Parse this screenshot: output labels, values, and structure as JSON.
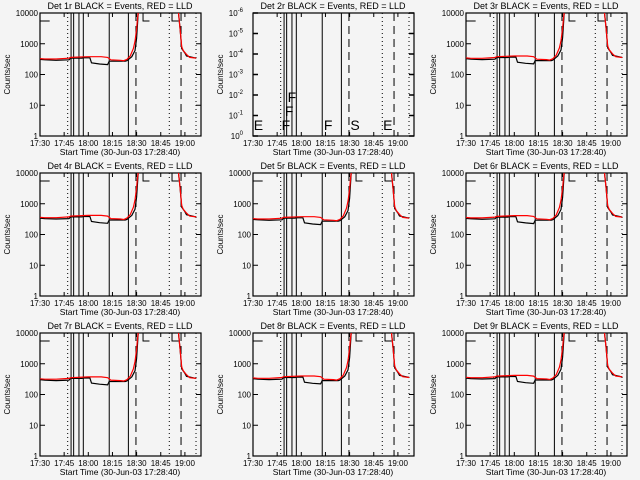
{
  "colors": {
    "events": "#000000",
    "lld": "#ff0000",
    "background": "#f4f4f4"
  },
  "chart_data": {
    "type": "line",
    "x_units": "minutes since 17:30",
    "xlim": [
      0,
      100
    ],
    "xticks": [
      {
        "v": 0,
        "label": "17:30"
      },
      {
        "v": 15,
        "label": "17:45"
      },
      {
        "v": 30,
        "label": "18:00"
      },
      {
        "v": 45,
        "label": "18:15"
      },
      {
        "v": 60,
        "label": "18:30"
      },
      {
        "v": 75,
        "label": "18:45"
      },
      {
        "v": 90,
        "label": "19:00"
      }
    ],
    "xlabel": "Start Time (30-Jun-03 17:28:40)",
    "ylabel": "Counts/sec",
    "ylim": [
      1,
      10000
    ],
    "yscale": "log",
    "yticks": [
      {
        "v": 1,
        "label": "1"
      },
      {
        "v": 10,
        "label": "10"
      },
      {
        "v": 100,
        "label": "100"
      },
      {
        "v": 1000,
        "label": "1000"
      },
      {
        "v": 10000,
        "label": "10000"
      }
    ],
    "markers": {
      "solid": [
        19.3,
        20.9,
        24.2,
        26.9,
        43,
        54.9
      ],
      "dashed": [
        59.6,
        87.6
      ],
      "dotted": [
        17.2,
        80.3,
        96.9
      ]
    },
    "panels": [
      {
        "title": "Det 1r BLACK = Events, RED = LLD",
        "scale": 1.0
      },
      {
        "title": "Det 2r BLACK = Events, RED = LLD",
        "empty": true,
        "yticks": [
          {
            "base": "10",
            "exp": "0"
          },
          {
            "base": "10",
            "exp": "-1"
          },
          {
            "base": "10",
            "exp": "-2"
          },
          {
            "base": "10",
            "exp": "-3"
          },
          {
            "base": "10",
            "exp": "-4"
          },
          {
            "base": "10",
            "exp": "-5"
          },
          {
            "base": "10",
            "exp": "-6"
          }
        ],
        "letters": [
          {
            "t": 0.5,
            "label": "E"
          },
          {
            "t": 17.8,
            "label": "F"
          },
          {
            "t": 19.8,
            "label": "F"
          },
          {
            "t": 21.5,
            "label": "F"
          },
          {
            "t": 44,
            "label": "F"
          },
          {
            "t": 60.5,
            "label": "S"
          },
          {
            "t": 80.8,
            "label": "E"
          }
        ]
      },
      {
        "title": "Det 3r BLACK = Events, RED = LLD",
        "scale": 1.05
      },
      {
        "title": "Det 4r BLACK = Events, RED = LLD",
        "scale": 1.1
      },
      {
        "title": "Det 5r BLACK = Events, RED = LLD",
        "scale": 1.0
      },
      {
        "title": "Det 6r BLACK = Events, RED = LLD",
        "scale": 1.08
      },
      {
        "title": "Det 7r BLACK = Events, RED = LLD",
        "scale": 0.98
      },
      {
        "title": "Det 8r BLACK = Events, RED = LLD",
        "scale": 1.05
      },
      {
        "title": "Det 9r BLACK = Events, RED = LLD",
        "scale": 1.1
      }
    ],
    "series": [
      {
        "name": "Events",
        "color": "#000000",
        "segments": [
          [
            [
              0,
              310
            ],
            [
              3,
              300
            ],
            [
              10,
              290
            ],
            [
              18,
              300
            ],
            [
              19,
              340
            ],
            [
              26,
              340
            ],
            [
              27,
              350
            ],
            [
              31,
              350
            ],
            [
              32,
              240
            ],
            [
              37,
              220
            ],
            [
              42,
              210
            ],
            [
              43,
              270
            ],
            [
              53,
              270
            ],
            [
              54,
              280
            ],
            [
              57,
              380
            ],
            [
              59,
              600
            ],
            [
              60,
              1500
            ],
            [
              61,
              10000
            ]
          ],
          [
            [
              86,
              10000
            ],
            [
              87,
              3000
            ],
            [
              88,
              700
            ],
            [
              90,
              500
            ],
            [
              91,
              400
            ],
            [
              97,
              340
            ]
          ]
        ]
      },
      {
        "name": "LLD",
        "color": "#ff0000",
        "segments": [
          [
            [
              0,
              330
            ],
            [
              3,
              320
            ],
            [
              10,
              320
            ],
            [
              18,
              340
            ],
            [
              19,
              360
            ],
            [
              30,
              380
            ],
            [
              38,
              380
            ],
            [
              42,
              360
            ],
            [
              44,
              300
            ],
            [
              50,
              290
            ],
            [
              52,
              280
            ],
            [
              54,
              310
            ],
            [
              56,
              400
            ],
            [
              58,
              700
            ],
            [
              59,
              1200
            ],
            [
              60,
              3000
            ],
            [
              60.5,
              6000
            ],
            [
              61,
              12000
            ]
          ],
          [
            [
              86,
              12000
            ],
            [
              87,
              3000
            ],
            [
              88,
              800
            ],
            [
              89,
              600
            ],
            [
              91,
              450
            ],
            [
              93,
              360
            ],
            [
              97,
              340
            ]
          ]
        ]
      }
    ]
  }
}
